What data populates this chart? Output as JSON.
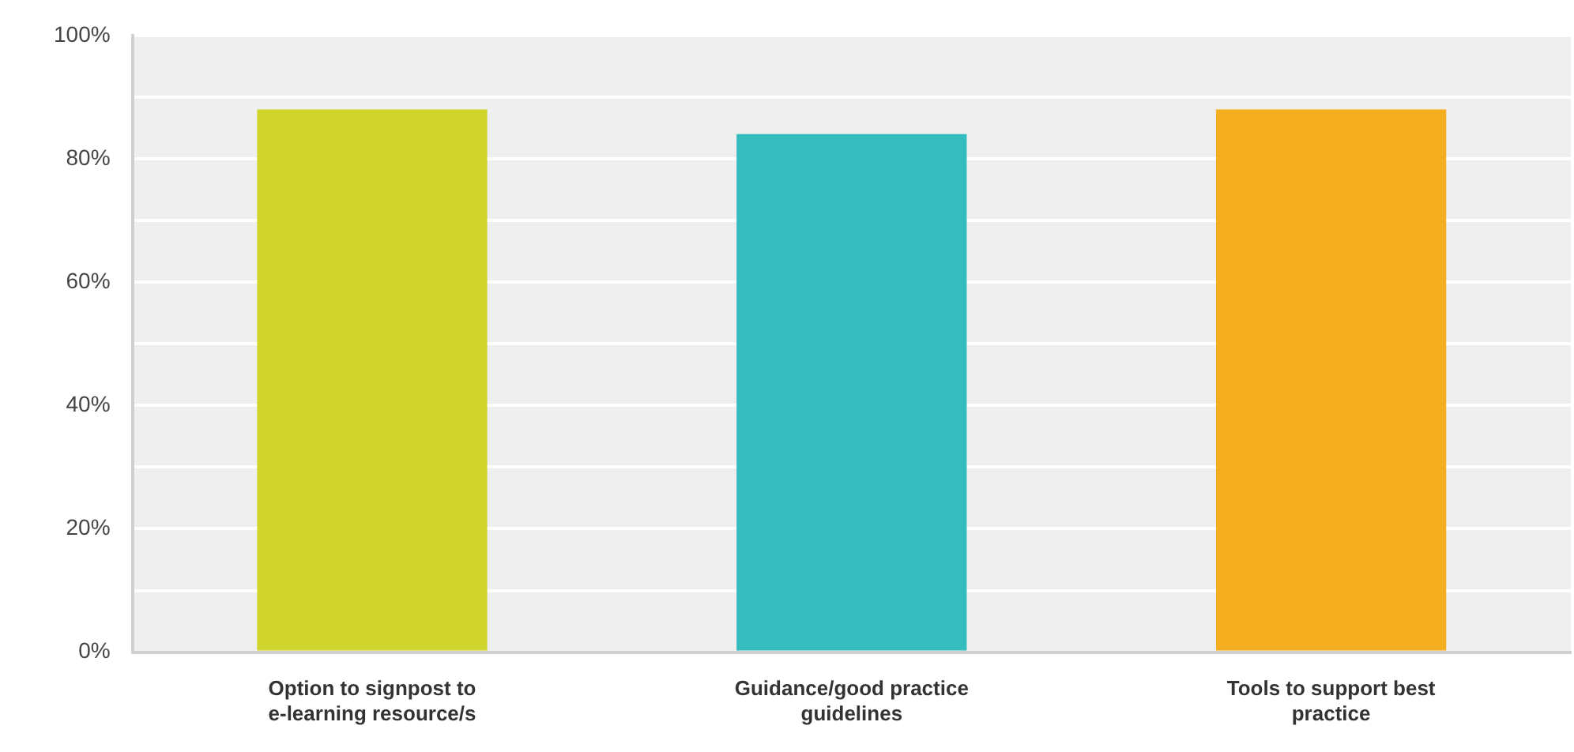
{
  "chart_data": {
    "type": "bar",
    "categories": [
      "Option to signpost to e-learning resource/s",
      "Guidance/good practice guidelines",
      "Tools to support best practice"
    ],
    "values": [
      88,
      84,
      88
    ],
    "colors": [
      "#cfd52a",
      "#34bcbe",
      "#f5ae20"
    ],
    "ylim": [
      0,
      100
    ],
    "yticks": [
      {
        "value": 0,
        "label": "0%"
      },
      {
        "value": 10,
        "label": null
      },
      {
        "value": 20,
        "label": "20%"
      },
      {
        "value": 30,
        "label": null
      },
      {
        "value": 40,
        "label": "40%"
      },
      {
        "value": 50,
        "label": null
      },
      {
        "value": 60,
        "label": "60%"
      },
      {
        "value": 70,
        "label": null
      },
      {
        "value": 80,
        "label": "80%"
      },
      {
        "value": 90,
        "label": null
      },
      {
        "value": 100,
        "label": "100%"
      }
    ],
    "grid": "y",
    "legend": false
  }
}
